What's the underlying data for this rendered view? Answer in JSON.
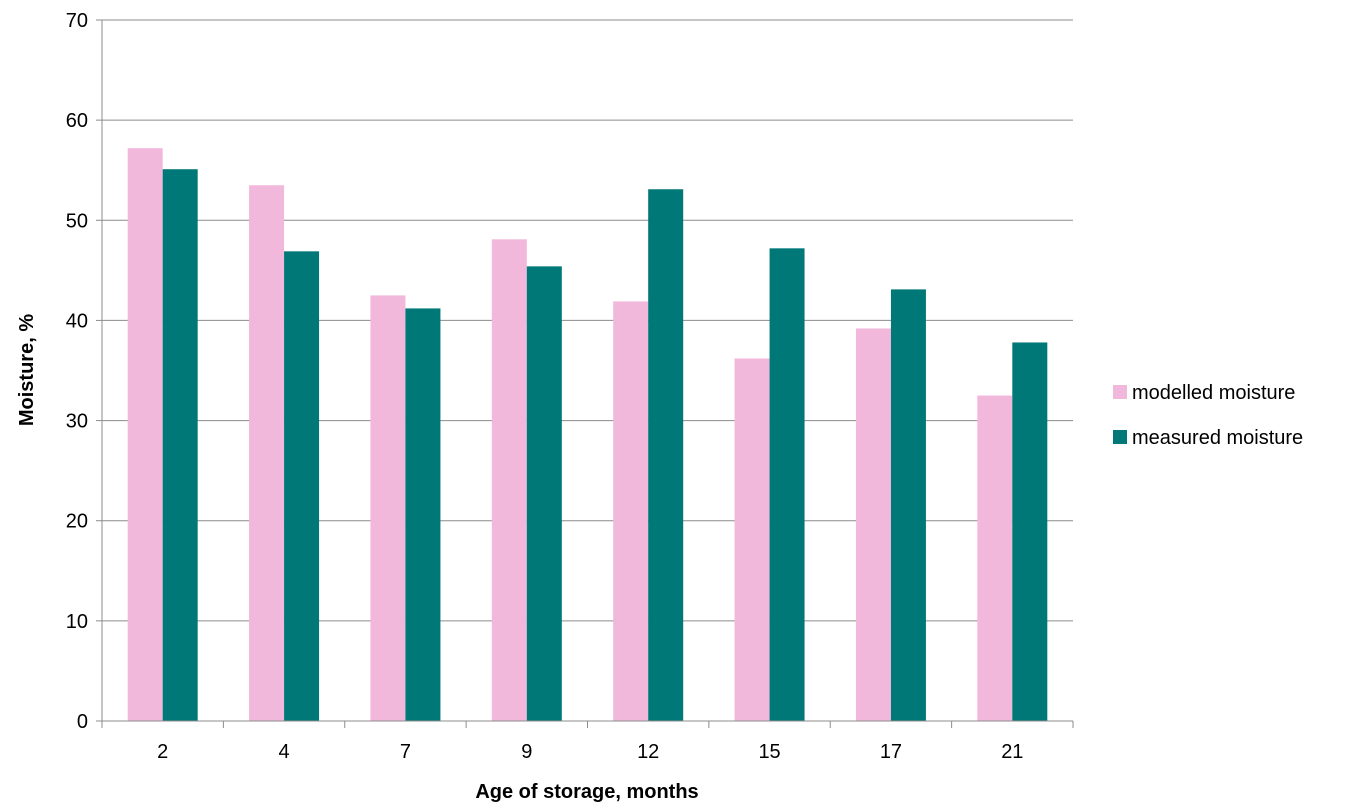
{
  "chart_data": {
    "type": "bar",
    "title": "",
    "xlabel": "Age of storage, months",
    "ylabel": "Moisture, %",
    "ylim": [
      0,
      70
    ],
    "yticks": [
      0,
      10,
      20,
      30,
      40,
      50,
      60,
      70
    ],
    "grid": true,
    "legend_position": "right",
    "categories": [
      "2",
      "4",
      "7",
      "9",
      "12",
      "15",
      "17",
      "21"
    ],
    "series": [
      {
        "name": "modelled moisture",
        "color": "#f2b8dc",
        "values": [
          57.2,
          53.5,
          42.5,
          48.1,
          41.9,
          36.2,
          39.2,
          32.5
        ]
      },
      {
        "name": "measured moisture",
        "color": "#007878",
        "values": [
          55.1,
          46.9,
          41.2,
          45.4,
          53.1,
          47.2,
          43.1,
          37.8
        ]
      }
    ]
  }
}
